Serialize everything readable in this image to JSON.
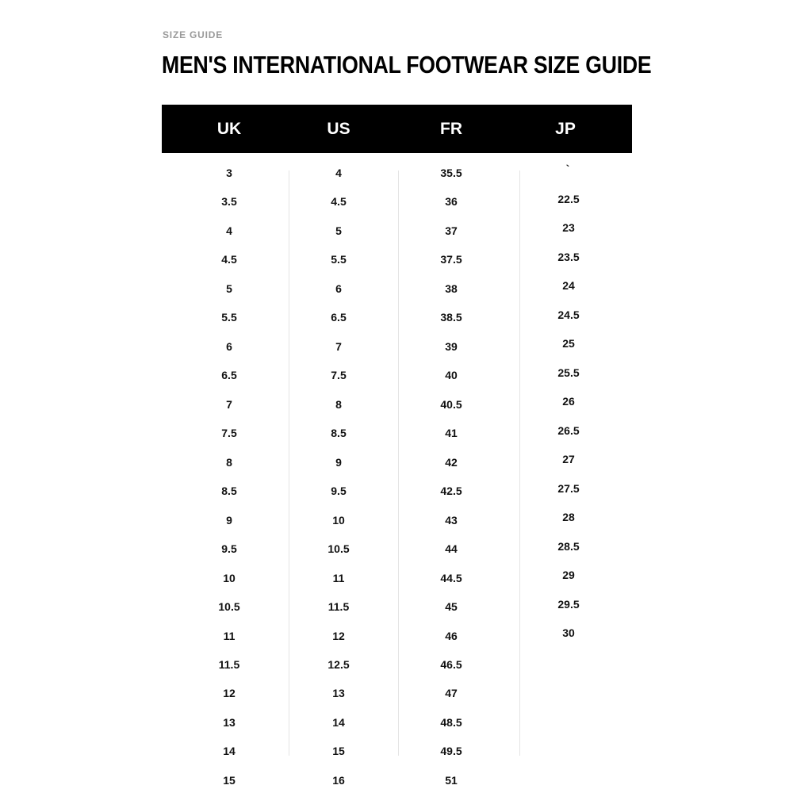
{
  "eyebrow": "SIZE GUIDE",
  "title": "MEN'S INTERNATIONAL FOOTWEAR SIZE GUIDE",
  "table": {
    "headers": [
      "UK",
      "US",
      "FR",
      "JP"
    ],
    "columns": {
      "uk": [
        "3",
        "3.5",
        "4",
        "4.5",
        "5",
        "5.5",
        "6",
        "6.5",
        "7",
        "7.5",
        "8",
        "8.5",
        "9",
        "9.5",
        "10",
        "10.5",
        "11",
        "11.5",
        "12",
        "13",
        "14",
        "15"
      ],
      "us": [
        "4",
        "4.5",
        "5",
        "5.5",
        "6",
        "6.5",
        "7",
        "7.5",
        "8",
        "8.5",
        "9",
        "9.5",
        "10",
        "10.5",
        "11",
        "11.5",
        "12",
        "12.5",
        "13",
        "14",
        "15",
        "16"
      ],
      "fr": [
        "35.5",
        "36",
        "37",
        "37.5",
        "38",
        "38.5",
        "39",
        "40",
        "40.5",
        "41",
        "42",
        "42.5",
        "43",
        "44",
        "44.5",
        "45",
        "46",
        "46.5",
        "47",
        "48.5",
        "49.5",
        "51"
      ],
      "jp_mark": "`",
      "jp": [
        "22.5",
        "23",
        "23.5",
        "24",
        "24.5",
        "25",
        "25.5",
        "26",
        "26.5",
        "27",
        "27.5",
        "28",
        "28.5",
        "29",
        "29.5",
        "30"
      ]
    }
  }
}
